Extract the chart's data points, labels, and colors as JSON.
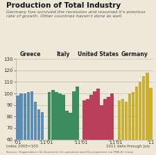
{
  "title": "Production of Total Industry",
  "subtitle": "Germany has survived the recession and resumed it's previous\nrate of growth. Other countries haven't done as well.",
  "background_color": "#ede8d8",
  "countries": [
    "Greece",
    "Italy",
    "United States",
    "Germany"
  ],
  "country_colors": [
    "#5b8db8",
    "#3d8c60",
    "#b8405a",
    "#c9b030"
  ],
  "ylim": [
    60,
    130
  ],
  "yticks": [
    60,
    70,
    80,
    90,
    100,
    110,
    120,
    130
  ],
  "xlabel_note": "Index 2005=100",
  "xlabel_note2": "2011 data through July",
  "source_note": "Source: Organisation for Economic Co-operation and Development via FRB-St. Louis",
  "greece": [
    98,
    100,
    100,
    101,
    102,
    93,
    86,
    84
  ],
  "italy": [
    101,
    103,
    101,
    100,
    99,
    85,
    83,
    102,
    106
  ],
  "us": [
    94,
    95,
    99,
    102,
    104,
    90,
    95,
    97,
    100
  ],
  "germany": [
    94,
    95,
    93,
    100,
    101,
    106,
    110,
    115,
    118,
    105
  ]
}
